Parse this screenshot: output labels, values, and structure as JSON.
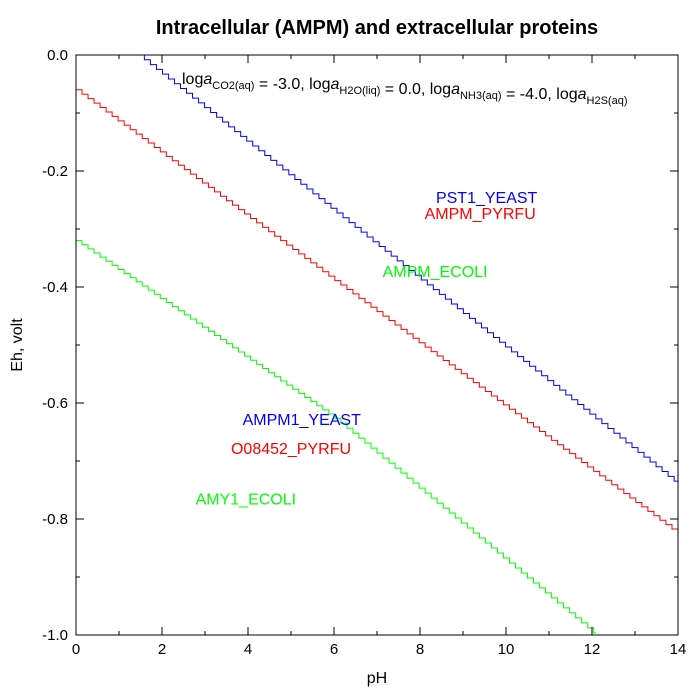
{
  "chart_data": {
    "type": "line",
    "title": "Intracellular (AMPM) and extracellular proteins",
    "xlabel": "pH",
    "ylabel": "Eh, volt",
    "xlim": [
      0,
      14
    ],
    "ylim": [
      -1.0,
      0.0
    ],
    "x_ticks": [
      0,
      2,
      4,
      6,
      8,
      10,
      12,
      14
    ],
    "x_tick_labels": [
      "0",
      "2",
      "4",
      "6",
      "8",
      "10",
      "12",
      "14"
    ],
    "y_ticks": [
      0.0,
      -0.2,
      -0.4,
      -0.6,
      -0.8,
      -1.0
    ],
    "y_tick_labels": [
      "0.0",
      "-0.2",
      "-0.4",
      "-0.6",
      "-0.8",
      "-1.0"
    ],
    "grid": false,
    "annotation": {
      "parts": [
        {
          "text": "log",
          "style": "normal"
        },
        {
          "text": "a",
          "style": "italic"
        },
        {
          "text": "CO2(aq)",
          "style": "sub"
        },
        {
          "text": " = -3.0, log",
          "style": "normal"
        },
        {
          "text": "a",
          "style": "italic"
        },
        {
          "text": "H2O(liq)",
          "style": "sub"
        },
        {
          "text": " = 0.0, log",
          "style": "normal"
        },
        {
          "text": "a",
          "style": "italic"
        },
        {
          "text": "NH3(aq)",
          "style": "sub"
        },
        {
          "text": " = -4.0, log",
          "style": "normal"
        },
        {
          "text": "a",
          "style": "italic"
        },
        {
          "text": "H2S(aq)",
          "style": "sub"
        }
      ]
    },
    "series": [
      {
        "color": "#0000ff",
        "x": [
          1.45,
          14.0
        ],
        "y": [
          0.0,
          -0.74
        ],
        "step": 0.14
      },
      {
        "color": "#ff0000",
        "x": [
          0.0,
          14.0
        ],
        "y": [
          -0.06,
          -0.825
        ],
        "step": 0.14
      },
      {
        "color": "#00ff00",
        "x": [
          0.0,
          6.0,
          12.1
        ],
        "y": [
          -0.32,
          -0.625,
          -1.0
        ],
        "step": 0.14
      }
    ],
    "region_labels": [
      {
        "text": "PST1_YEAST",
        "color": "#0000ff",
        "x": 9.55,
        "y": -0.245
      },
      {
        "text": "AMPM_PYRFU",
        "color": "#ff0000",
        "x": 9.4,
        "y": -0.272
      },
      {
        "text": "AMPM_ECOLI",
        "color": "#00ff00",
        "x": 8.35,
        "y": -0.372
      },
      {
        "text": "AMPM1_YEAST",
        "color": "#0000ff",
        "x": 5.25,
        "y": -0.628
      },
      {
        "text": "O08452_PYRFU",
        "color": "#ff0000",
        "x": 5.0,
        "y": -0.678
      },
      {
        "text": "AMY1_ECOLI",
        "color": "#00ff00",
        "x": 3.95,
        "y": -0.765
      }
    ]
  }
}
